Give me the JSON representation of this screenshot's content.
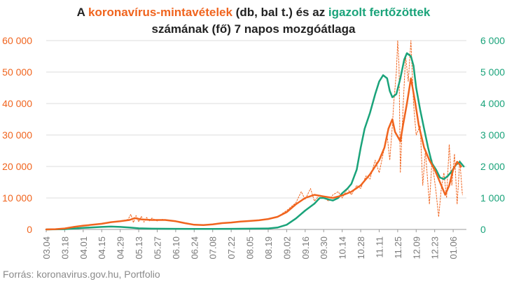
{
  "title": {
    "line1_prefix": "A ",
    "line1_orange": "koronavírus-mintavételek",
    "line1_middle": " (db, bal t.) és az ",
    "line1_green": "igazolt fertőzöttek",
    "line2": "számának (fő) 7 napos mozgóátlaga"
  },
  "source": "Forrás: koronavirus.gov.hu, Portfolio",
  "chart_data": {
    "type": "line",
    "x_tick_labels": [
      "03.04",
      "03.18",
      "04.01",
      "04.15",
      "04.29",
      "05.13",
      "05.27",
      "06.10",
      "06.24",
      "07.08",
      "07.22",
      "08.05",
      "08.19",
      "09.02",
      "09.16",
      "09.30",
      "10.14",
      "10.28",
      "11.11",
      "11.25",
      "12.09",
      "12.23",
      "01.06"
    ],
    "x_tick_days": [
      0,
      14,
      28,
      42,
      56,
      70,
      84,
      98,
      112,
      126,
      140,
      154,
      168,
      182,
      196,
      210,
      224,
      238,
      252,
      266,
      280,
      294,
      308
    ],
    "x_range_days": [
      0,
      318
    ],
    "y_left": {
      "ticks": [
        "0",
        "10 000",
        "20 000",
        "30 000",
        "40 000",
        "50 000",
        "60 000"
      ],
      "ylim": [
        0,
        60000
      ],
      "color": "#f0641e"
    },
    "y_right": {
      "ticks": [
        "0",
        "1 000",
        "2 000",
        "3 000",
        "4 000",
        "5 000",
        "6 000"
      ],
      "ylim": [
        0,
        6000
      ],
      "color": "#1aa37a"
    },
    "colors": {
      "tests_avg": "#f0641e",
      "tests_daily": "#f0641e",
      "cases_avg": "#1aa37a",
      "grid": "#dddddd"
    },
    "series": [
      {
        "axis": "left",
        "style": "solid",
        "points": [
          [
            0,
            0
          ],
          [
            7,
            100
          ],
          [
            14,
            300
          ],
          [
            21,
            800
          ],
          [
            28,
            1200
          ],
          [
            35,
            1500
          ],
          [
            42,
            1800
          ],
          [
            49,
            2300
          ],
          [
            56,
            2600
          ],
          [
            63,
            3000
          ],
          [
            67,
            3600
          ],
          [
            72,
            3200
          ],
          [
            80,
            3000
          ],
          [
            90,
            3000
          ],
          [
            98,
            2600
          ],
          [
            105,
            2000
          ],
          [
            112,
            1500
          ],
          [
            119,
            1400
          ],
          [
            126,
            1600
          ],
          [
            133,
            2000
          ],
          [
            140,
            2200
          ],
          [
            147,
            2500
          ],
          [
            154,
            2700
          ],
          [
            161,
            2900
          ],
          [
            168,
            3300
          ],
          [
            175,
            4000
          ],
          [
            182,
            5500
          ],
          [
            189,
            8000
          ],
          [
            196,
            10000
          ],
          [
            203,
            11000
          ],
          [
            210,
            10500
          ],
          [
            217,
            10000
          ],
          [
            224,
            10800
          ],
          [
            231,
            12000
          ],
          [
            238,
            14000
          ],
          [
            245,
            17500
          ],
          [
            252,
            22000
          ],
          [
            256,
            26000
          ],
          [
            259,
            32000
          ],
          [
            262,
            35000
          ],
          [
            264,
            31000
          ],
          [
            268,
            28000
          ],
          [
            270,
            33000
          ],
          [
            273,
            40000
          ],
          [
            276,
            48000
          ],
          [
            279,
            41000
          ],
          [
            282,
            33000
          ],
          [
            286,
            26000
          ],
          [
            290,
            22000
          ],
          [
            294,
            19000
          ],
          [
            298,
            15000
          ],
          [
            302,
            11000
          ],
          [
            305,
            14000
          ],
          [
            308,
            19000
          ],
          [
            311,
            21500
          ],
          [
            314,
            20000
          ]
        ]
      },
      {
        "axis": "left",
        "style": "dotted",
        "points": [
          [
            0,
            0
          ],
          [
            14,
            300
          ],
          [
            28,
            1100
          ],
          [
            42,
            1800
          ],
          [
            56,
            2600
          ],
          [
            62,
            3200
          ],
          [
            64,
            4800
          ],
          [
            66,
            2200
          ],
          [
            68,
            4400
          ],
          [
            70,
            2400
          ],
          [
            72,
            4200
          ],
          [
            74,
            2300
          ],
          [
            76,
            3800
          ],
          [
            78,
            2600
          ],
          [
            80,
            3600
          ],
          [
            84,
            2700
          ],
          [
            88,
            3200
          ],
          [
            98,
            2500
          ],
          [
            112,
            1500
          ],
          [
            126,
            1600
          ],
          [
            140,
            2200
          ],
          [
            154,
            2700
          ],
          [
            168,
            3200
          ],
          [
            175,
            4000
          ],
          [
            182,
            6000
          ],
          [
            189,
            8500
          ],
          [
            193,
            12000
          ],
          [
            196,
            9500
          ],
          [
            200,
            13000
          ],
          [
            203,
            9000
          ],
          [
            207,
            11000
          ],
          [
            210,
            10000
          ],
          [
            214,
            9000
          ],
          [
            217,
            11000
          ],
          [
            221,
            12000
          ],
          [
            224,
            10000
          ],
          [
            228,
            13000
          ],
          [
            231,
            11000
          ],
          [
            235,
            14000
          ],
          [
            238,
            13000
          ],
          [
            242,
            17000
          ],
          [
            245,
            16000
          ],
          [
            249,
            22000
          ],
          [
            252,
            18000
          ],
          [
            255,
            24000
          ],
          [
            258,
            30000
          ],
          [
            260,
            22000
          ],
          [
            262,
            33000
          ],
          [
            263,
            40000
          ],
          [
            265,
            50000
          ],
          [
            266,
            60000
          ],
          [
            267,
            52000
          ],
          [
            268,
            18000
          ],
          [
            270,
            38000
          ],
          [
            272,
            55000
          ],
          [
            274,
            47000
          ],
          [
            276,
            60000
          ],
          [
            278,
            40000
          ],
          [
            280,
            30000
          ],
          [
            283,
            33000
          ],
          [
            285,
            14000
          ],
          [
            287,
            25000
          ],
          [
            290,
            8000
          ],
          [
            292,
            22000
          ],
          [
            295,
            12000
          ],
          [
            297,
            4000
          ],
          [
            299,
            13000
          ],
          [
            301,
            18000
          ],
          [
            303,
            10000
          ],
          [
            305,
            27000
          ],
          [
            307,
            14000
          ],
          [
            309,
            24000
          ],
          [
            311,
            8000
          ],
          [
            313,
            22000
          ],
          [
            315,
            11000
          ]
        ]
      },
      {
        "axis": "right",
        "style": "solid",
        "points": [
          [
            0,
            0
          ],
          [
            14,
            10
          ],
          [
            28,
            50
          ],
          [
            42,
            80
          ],
          [
            49,
            90
          ],
          [
            56,
            80
          ],
          [
            63,
            60
          ],
          [
            70,
            35
          ],
          [
            80,
            25
          ],
          [
            98,
            20
          ],
          [
            112,
            15
          ],
          [
            126,
            15
          ],
          [
            140,
            20
          ],
          [
            154,
            25
          ],
          [
            168,
            30
          ],
          [
            175,
            60
          ],
          [
            182,
            150
          ],
          [
            189,
            350
          ],
          [
            196,
            600
          ],
          [
            203,
            820
          ],
          [
            207,
            1000
          ],
          [
            210,
            1000
          ],
          [
            214,
            950
          ],
          [
            217,
            920
          ],
          [
            221,
            1000
          ],
          [
            224,
            1150
          ],
          [
            228,
            1300
          ],
          [
            231,
            1450
          ],
          [
            235,
            1900
          ],
          [
            238,
            2600
          ],
          [
            241,
            3200
          ],
          [
            245,
            3700
          ],
          [
            249,
            4300
          ],
          [
            252,
            4700
          ],
          [
            255,
            4900
          ],
          [
            258,
            4800
          ],
          [
            260,
            4400
          ],
          [
            262,
            4200
          ],
          [
            265,
            4300
          ],
          [
            268,
            4800
          ],
          [
            271,
            5400
          ],
          [
            273,
            5600
          ],
          [
            276,
            5500
          ],
          [
            278,
            5200
          ],
          [
            280,
            4500
          ],
          [
            283,
            3800
          ],
          [
            286,
            3200
          ],
          [
            289,
            2600
          ],
          [
            292,
            2100
          ],
          [
            295,
            1900
          ],
          [
            298,
            1650
          ],
          [
            301,
            1600
          ],
          [
            304,
            1700
          ],
          [
            307,
            1850
          ],
          [
            310,
            2050
          ],
          [
            313,
            2150
          ],
          [
            316,
            2000
          ]
        ]
      }
    ]
  }
}
